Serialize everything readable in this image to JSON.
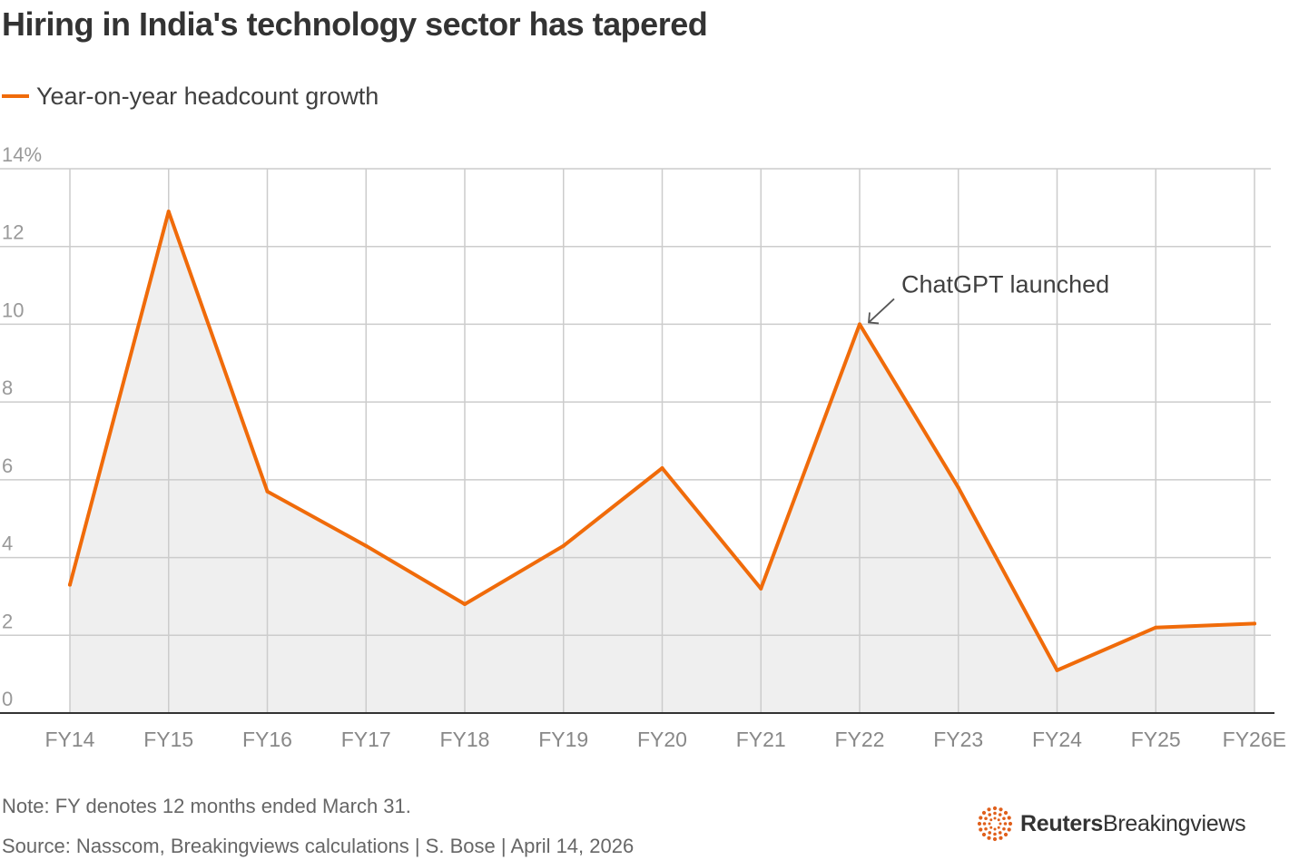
{
  "title": "Hiring in India's technology sector has tapered",
  "legend": {
    "label": "Year-on-year headcount growth",
    "color": "#f06b0a"
  },
  "note": "Note: FY denotes 12 months ended March 31.",
  "source": "Source: Nasscom, Breakingviews calculations | S. Bose | April 14, 2026",
  "logo": {
    "strong": "Reuters",
    "rest": "Breakingviews",
    "icon": "reuters-dots-icon",
    "color": "#e0601c"
  },
  "colors": {
    "line": "#f06b0a",
    "area": "#efefef",
    "grid": "#cccccc",
    "axis": "#333333",
    "tick": "#999999",
    "annotation": "#555555"
  },
  "chart_data": {
    "type": "area",
    "title": "Hiring in India's technology sector has tapered",
    "xlabel": "",
    "ylabel": "",
    "categories": [
      "FY14",
      "FY15",
      "FY16",
      "FY17",
      "FY18",
      "FY19",
      "FY20",
      "FY21",
      "FY22",
      "FY23",
      "FY24",
      "FY25",
      "FY26E"
    ],
    "series": [
      {
        "name": "Year-on-year headcount growth",
        "values": [
          3.3,
          12.9,
          5.7,
          4.3,
          2.8,
          4.3,
          6.3,
          3.2,
          10.0,
          5.8,
          1.1,
          2.2,
          2.3
        ]
      }
    ],
    "ylim": [
      0,
      14
    ],
    "yticks": [
      0,
      2,
      4,
      6,
      8,
      10,
      12,
      14
    ],
    "ytick_labels": [
      "0",
      "2",
      "4",
      "6",
      "8",
      "10",
      "12",
      "14%"
    ],
    "grid": true,
    "legend_position": "top-left",
    "annotations": [
      {
        "text": "ChatGPT launched",
        "category": "FY22",
        "value": 10.0
      }
    ]
  }
}
